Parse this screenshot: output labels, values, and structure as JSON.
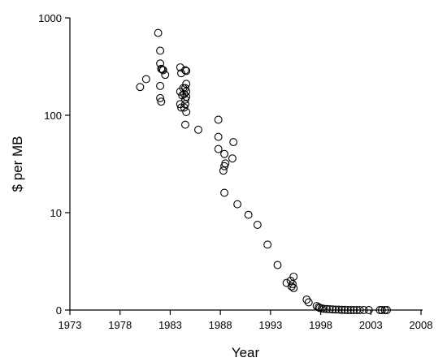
{
  "chart_data": {
    "type": "scatter",
    "title": "",
    "xlabel": "Year",
    "ylabel": "$ per MB",
    "xlim": [
      1973,
      2008
    ],
    "x_ticks": [
      1973,
      1978,
      1983,
      1988,
      1993,
      1998,
      2003,
      2008
    ],
    "x_tick_labels": [
      "1973",
      "1978",
      "1983",
      "1988",
      "1993",
      "1998",
      "2003",
      "2008"
    ],
    "y_scale": "log",
    "y_ticks": [
      0,
      10,
      100,
      1000
    ],
    "y_tick_labels": [
      "0",
      "10",
      "100",
      "1000"
    ],
    "grid": false,
    "legend": "none",
    "marker": "open-circle",
    "points": [
      {
        "x": 1980.0,
        "y": 195
      },
      {
        "x": 1980.6,
        "y": 235
      },
      {
        "x": 1981.8,
        "y": 700
      },
      {
        "x": 1982.0,
        "y": 460
      },
      {
        "x": 1982.0,
        "y": 340
      },
      {
        "x": 1982.1,
        "y": 300
      },
      {
        "x": 1982.2,
        "y": 295
      },
      {
        "x": 1982.3,
        "y": 290
      },
      {
        "x": 1982.5,
        "y": 260
      },
      {
        "x": 1982.0,
        "y": 200
      },
      {
        "x": 1982.0,
        "y": 150
      },
      {
        "x": 1982.1,
        "y": 138
      },
      {
        "x": 1984.0,
        "y": 310
      },
      {
        "x": 1984.1,
        "y": 270
      },
      {
        "x": 1984.3,
        "y": 190
      },
      {
        "x": 1984.0,
        "y": 175
      },
      {
        "x": 1984.2,
        "y": 160
      },
      {
        "x": 1984.0,
        "y": 130
      },
      {
        "x": 1984.1,
        "y": 120
      },
      {
        "x": 1984.5,
        "y": 290
      },
      {
        "x": 1984.6,
        "y": 285
      },
      {
        "x": 1984.6,
        "y": 210
      },
      {
        "x": 1984.5,
        "y": 190
      },
      {
        "x": 1984.6,
        "y": 175
      },
      {
        "x": 1984.4,
        "y": 165
      },
      {
        "x": 1984.6,
        "y": 155
      },
      {
        "x": 1984.5,
        "y": 145
      },
      {
        "x": 1984.5,
        "y": 130
      },
      {
        "x": 1984.4,
        "y": 120
      },
      {
        "x": 1984.6,
        "y": 108
      },
      {
        "x": 1984.5,
        "y": 80
      },
      {
        "x": 1985.8,
        "y": 71
      },
      {
        "x": 1987.8,
        "y": 90
      },
      {
        "x": 1987.8,
        "y": 60
      },
      {
        "x": 1987.8,
        "y": 45
      },
      {
        "x": 1988.4,
        "y": 40
      },
      {
        "x": 1988.5,
        "y": 32
      },
      {
        "x": 1988.4,
        "y": 30
      },
      {
        "x": 1988.3,
        "y": 27
      },
      {
        "x": 1988.4,
        "y": 16
      },
      {
        "x": 1989.3,
        "y": 53
      },
      {
        "x": 1989.2,
        "y": 36
      },
      {
        "x": 1989.7,
        "y": 12.2
      },
      {
        "x": 1990.8,
        "y": 9.5
      },
      {
        "x": 1991.7,
        "y": 7.5
      },
      {
        "x": 1992.7,
        "y": 4.7
      },
      {
        "x": 1993.7,
        "y": 2.9
      },
      {
        "x": 1994.6,
        "y": 1.9
      },
      {
        "x": 1995.0,
        "y": 2.0
      },
      {
        "x": 1995.2,
        "y": 1.85
      },
      {
        "x": 1995.3,
        "y": 2.2
      },
      {
        "x": 1995.1,
        "y": 1.75
      },
      {
        "x": 1995.3,
        "y": 1.68
      },
      {
        "x": 1996.6,
        "y": 1.28
      },
      {
        "x": 1996.8,
        "y": 1.2
      },
      {
        "x": 1997.6,
        "y": 1.1
      },
      {
        "x": 1997.8,
        "y": 1.07
      },
      {
        "x": 1997.9,
        "y": 1.05
      },
      {
        "x": 1998.1,
        "y": 1.04
      },
      {
        "x": 1998.3,
        "y": 1.03
      },
      {
        "x": 1998.6,
        "y": 1.025
      },
      {
        "x": 1998.9,
        "y": 1.02
      },
      {
        "x": 1999.2,
        "y": 1.015
      },
      {
        "x": 1999.5,
        "y": 1.01
      },
      {
        "x": 1999.8,
        "y": 1.01
      },
      {
        "x": 2000.1,
        "y": 1.005
      },
      {
        "x": 2000.4,
        "y": 1.005
      },
      {
        "x": 2000.7,
        "y": 1.0
      },
      {
        "x": 2001.0,
        "y": 1.0
      },
      {
        "x": 2001.3,
        "y": 1.0
      },
      {
        "x": 2001.6,
        "y": 1.0
      },
      {
        "x": 2001.9,
        "y": 1.0
      },
      {
        "x": 2002.3,
        "y": 1.0
      },
      {
        "x": 2002.8,
        "y": 1.0
      },
      {
        "x": 2003.9,
        "y": 1.0
      },
      {
        "x": 2004.1,
        "y": 1.0
      },
      {
        "x": 2004.4,
        "y": 1.0
      },
      {
        "x": 2004.6,
        "y": 1.0
      }
    ]
  }
}
